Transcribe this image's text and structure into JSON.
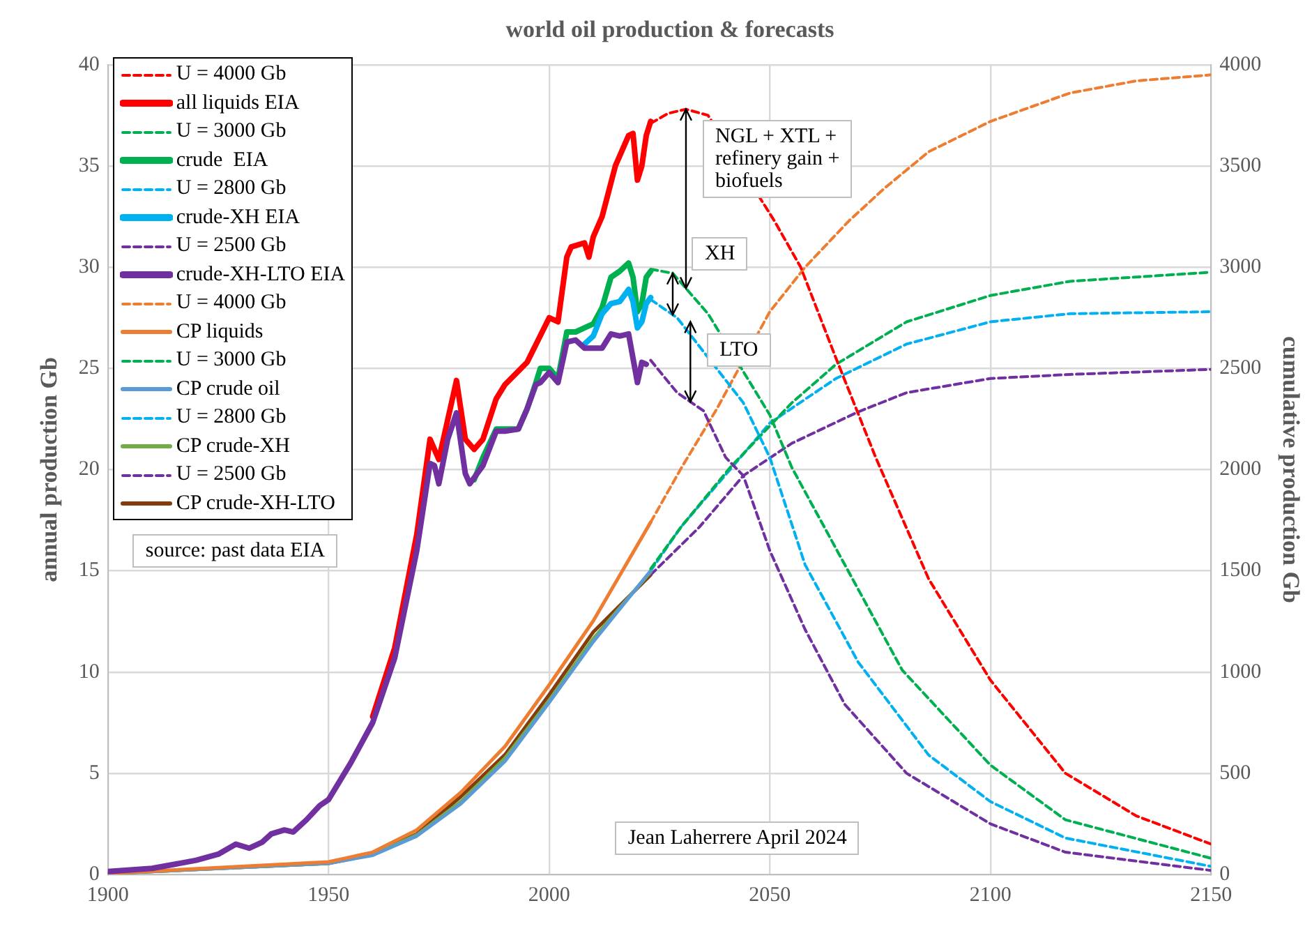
{
  "chart_data": {
    "type": "line",
    "title": "world oil production & forecasts",
    "ylabel": "annual production Gb",
    "y2label": "cumulative production Gb",
    "xlim": [
      1900,
      2150
    ],
    "xticks": [
      1900,
      1950,
      2000,
      2050,
      2100,
      2150
    ],
    "ylim": [
      0,
      40
    ],
    "yticks": [
      0,
      5,
      10,
      15,
      20,
      25,
      30,
      35,
      40
    ],
    "y2lim": [
      0,
      4000
    ],
    "y2ticks": [
      0,
      500,
      1000,
      1500,
      2000,
      2500,
      3000,
      3500,
      4000
    ],
    "grid": true,
    "legend": "top left",
    "marker": "none",
    "annotations": [
      {
        "text": "NGL + XTL +\nrefinery gain +\nbiofuels",
        "x": 2031,
        "y": 37.8
      },
      {
        "text": "XH",
        "x": 2028,
        "y": 29.7
      },
      {
        "text": "LTO",
        "x": 2032,
        "y": 27.3
      },
      "source: past data EIA",
      "Jean Laherrere April 2024"
    ],
    "series": [
      {
        "name": "U = 4000 Gb",
        "color": "#ff0000",
        "line_style": "dashed",
        "x": [
          2023,
          2027,
          2031,
          2036,
          2051,
          2057,
          2065,
          2074,
          2086,
          2100,
          2117,
          2133,
          2150
        ],
        "values": [
          37.1,
          37.6,
          37.8,
          37.5,
          32.3,
          30.0,
          25.5,
          20.6,
          14.6,
          9.6,
          5.0,
          2.9,
          1.5
        ]
      },
      {
        "name": "all liquids EIA",
        "color": "#ff0000",
        "line_style": "solid",
        "x": [
          1960,
          1965,
          1970,
          1973,
          1975,
          1979,
          1981,
          1983,
          1985,
          1988,
          1990,
          1995,
          2000,
          2002,
          2004,
          2005,
          2008,
          2009,
          2010,
          2012,
          2015,
          2018,
          2019,
          2020,
          2021,
          2022,
          2023
        ],
        "values": [
          7.8,
          11.2,
          16.8,
          21.5,
          20.5,
          24.4,
          21.5,
          21.0,
          21.5,
          23.5,
          24.2,
          25.3,
          27.5,
          27.3,
          30.5,
          31.0,
          31.2,
          30.5,
          31.5,
          32.5,
          35.0,
          36.5,
          36.6,
          34.3,
          35.0,
          36.5,
          37.2
        ]
      },
      {
        "name": "U = 3000 Gb",
        "color": "#00b050",
        "line_style": "dashed",
        "x": [
          2023,
          2028,
          2036,
          2050,
          2055,
          2068,
          2080,
          2100,
          2117,
          2150
        ],
        "values": [
          29.9,
          29.7,
          27.7,
          22.7,
          20.1,
          14.9,
          10.1,
          5.4,
          2.7,
          0.8
        ]
      },
      {
        "name": "crude  EIA",
        "color": "#00b050",
        "line_style": "solid",
        "x": [
          1983,
          1985,
          1988,
          1990,
          1993,
          1995,
          1997,
          1998,
          2000,
          2002,
          2004,
          2006,
          2008,
          2010,
          2012,
          2014,
          2016,
          2018,
          2019,
          2020,
          2021,
          2022,
          2023
        ],
        "values": [
          19.5,
          20.6,
          22.0,
          22.0,
          22.0,
          23.0,
          24.3,
          25.0,
          25.0,
          24.5,
          26.8,
          26.8,
          27.0,
          27.2,
          28.0,
          29.5,
          29.8,
          30.2,
          29.5,
          27.8,
          28.2,
          29.5,
          29.8
        ]
      },
      {
        "name": "U = 2800 Gb",
        "color": "#00b0f0",
        "line_style": "dashed",
        "x": [
          2023,
          2029,
          2044,
          2050,
          2058,
          2070,
          2086,
          2100,
          2117,
          2150
        ],
        "values": [
          28.4,
          27.5,
          23.3,
          20.6,
          15.3,
          10.5,
          5.9,
          3.6,
          1.8,
          0.4
        ]
      },
      {
        "name": "crude-XH EIA",
        "color": "#00b0f0",
        "line_style": "solid",
        "x": [
          2008,
          2010,
          2012,
          2014,
          2016,
          2018,
          2019,
          2020,
          2021,
          2022,
          2023
        ],
        "values": [
          26.2,
          26.6,
          27.7,
          28.2,
          28.3,
          28.9,
          28.3,
          27.0,
          27.3,
          28.2,
          28.5
        ]
      },
      {
        "name": "U = 2500 Gb",
        "color": "#7030a0",
        "line_style": "dashed",
        "x": [
          2023,
          2029,
          2035,
          2040,
          2044,
          2050,
          2058,
          2067,
          2081,
          2100,
          2117,
          2150
        ],
        "values": [
          25.4,
          23.8,
          22.9,
          20.6,
          19.7,
          16.0,
          12.1,
          8.4,
          5.0,
          2.5,
          1.1,
          0.2
        ]
      },
      {
        "name": "crude-XH-LTO EIA",
        "color": "#7030a0",
        "line_style": "solid",
        "x": [
          1900,
          1910,
          1920,
          1925,
          1929,
          1932,
          1935,
          1937,
          1940,
          1942,
          1945,
          1948,
          1950,
          1955,
          1960,
          1965,
          1970,
          1973,
          1974,
          1975,
          1977,
          1979,
          1981,
          1982,
          1983,
          1985,
          1988,
          1990,
          1993,
          1995,
          1997,
          1998,
          2000,
          2002,
          2004,
          2006,
          2008,
          2010,
          2012,
          2014,
          2016,
          2018,
          2019,
          2020,
          2021,
          2022
        ],
        "values": [
          0.15,
          0.3,
          0.7,
          1.0,
          1.5,
          1.3,
          1.6,
          2.0,
          2.2,
          2.1,
          2.7,
          3.4,
          3.7,
          5.5,
          7.5,
          10.7,
          16.0,
          20.3,
          20.2,
          19.3,
          21.5,
          22.8,
          19.8,
          19.3,
          19.6,
          20.2,
          21.9,
          21.9,
          22.0,
          23.0,
          24.2,
          24.3,
          24.8,
          24.3,
          26.3,
          26.4,
          26.0,
          26.0,
          26.0,
          26.7,
          26.6,
          26.7,
          25.5,
          24.3,
          25.3,
          25.2
        ]
      },
      {
        "name": "U = 4000 Gb",
        "color": "#ed7d31",
        "line_style": "dashed",
        "axis": "y2",
        "x": [
          2023,
          2030,
          2038,
          2050,
          2058,
          2068,
          2076,
          2086,
          2100,
          2118,
          2133,
          2150
        ],
        "values": [
          1740,
          2010,
          2300,
          2780,
          3000,
          3230,
          3390,
          3570,
          3720,
          3860,
          3920,
          3950
        ]
      },
      {
        "name": "CP liquids",
        "color": "#ed7d31",
        "line_style": "solid",
        "axis": "y2",
        "x": [
          1900,
          1950,
          1960,
          1970,
          1980,
          1990,
          2000,
          2010,
          2023
        ],
        "values": [
          5,
          62,
          110,
          220,
          406,
          633,
          936,
          1253,
          1740
        ]
      },
      {
        "name": "U = 3000 Gb",
        "color": "#00b050",
        "line_style": "dashed",
        "axis": "y2",
        "x": [
          2023,
          2030,
          2041,
          2055,
          2065,
          2081,
          2100,
          2118,
          2150
        ],
        "values": [
          1510,
          1720,
          2010,
          2330,
          2520,
          2730,
          2860,
          2930,
          2975
        ]
      },
      {
        "name": "CP crude oil",
        "color": "#5b9bd5",
        "line_style": "solid",
        "axis": "y2",
        "x": [
          1900,
          1950,
          1960,
          1970,
          1980,
          1990,
          2000,
          2010,
          2023
        ],
        "values": [
          5,
          55,
          95,
          190,
          350,
          560,
          850,
          1150,
          1500
        ]
      },
      {
        "name": "U = 2800 Gb",
        "color": "#00b0f0",
        "line_style": "dashed",
        "axis": "y2",
        "x": [
          2023,
          2030,
          2041,
          2050,
          2065,
          2081,
          2100,
          2118,
          2150
        ],
        "values": [
          1500,
          1720,
          2000,
          2230,
          2450,
          2620,
          2730,
          2770,
          2780
        ]
      },
      {
        "name": "CP crude-XH",
        "color": "#70ad47",
        "line_style": "solid",
        "axis": "y2",
        "x": [
          1900,
          1950,
          1960,
          1970,
          1980,
          1990,
          2000,
          2010,
          2023
        ],
        "values": [
          5,
          55,
          98,
          195,
          360,
          575,
          860,
          1165,
          1495
        ]
      },
      {
        "name": "U = 2500 Gb",
        "color": "#7030a0",
        "line_style": "dashed",
        "axis": "y2",
        "x": [
          2023,
          2034,
          2044,
          2055,
          2070,
          2081,
          2100,
          2118,
          2150
        ],
        "values": [
          1480,
          1715,
          1970,
          2130,
          2285,
          2380,
          2450,
          2470,
          2495
        ]
      },
      {
        "name": "CP crude-XH-LTO",
        "color": "#843c0c",
        "line_style": "solid",
        "axis": "y2",
        "x": [
          1900,
          1950,
          1960,
          1970,
          1980,
          1990,
          2000,
          2010,
          2023
        ],
        "values": [
          5,
          55,
          100,
          200,
          385,
          592,
          888,
          1198,
          1480
        ]
      }
    ]
  }
}
